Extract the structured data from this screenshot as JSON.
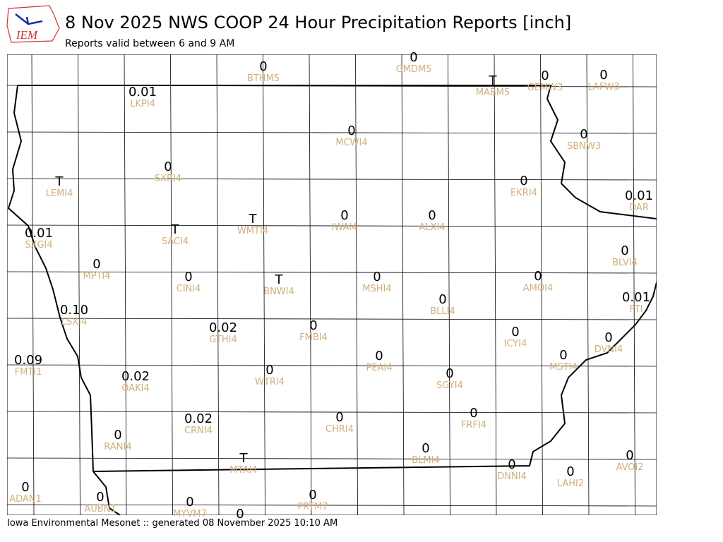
{
  "header": {
    "logo": "IEM",
    "title": "8 Nov 2025 NWS COOP 24 Hour Precipitation Reports [inch]",
    "subtitle": "Reports valid between 6 and 9 AM"
  },
  "stations": [
    {
      "value": "0",
      "id": "BTHM5"
    },
    {
      "value": "0",
      "id": "GMDM5"
    },
    {
      "value": "T",
      "id": "MABM5"
    },
    {
      "value": "0",
      "id": "GEMW3"
    },
    {
      "value": "0",
      "id": "LAFW3"
    },
    {
      "value": "0.01",
      "id": "LKPI4"
    },
    {
      "value": "0",
      "id": "MCWI4"
    },
    {
      "value": "0",
      "id": "SBNW3"
    },
    {
      "value": "T",
      "id": "LEMI4"
    },
    {
      "value": "0",
      "id": "SXRI4"
    },
    {
      "value": "0",
      "id": "EKRI4"
    },
    {
      "value": "0.01",
      "id": "DAR"
    },
    {
      "value": "0.01",
      "id": "SXGI4"
    },
    {
      "value": "T",
      "id": "SACI4"
    },
    {
      "value": "T",
      "id": "WMTI4"
    },
    {
      "value": "0",
      "id": "IWAI4"
    },
    {
      "value": "0",
      "id": "ALXI4"
    },
    {
      "value": "0",
      "id": "MPTI4"
    },
    {
      "value": "0",
      "id": "CINI4"
    },
    {
      "value": "T",
      "id": "BNWI4"
    },
    {
      "value": "0",
      "id": "MSHI4"
    },
    {
      "value": "0",
      "id": "AMOI4"
    },
    {
      "value": "0",
      "id": "BLVI4"
    },
    {
      "value": "0",
      "id": "BLLI4"
    },
    {
      "value": "0.01",
      "id": "FTI"
    },
    {
      "value": "0.10",
      "id": "LSXI4"
    },
    {
      "value": "0.02",
      "id": "GTHI4"
    },
    {
      "value": "0",
      "id": "FMBI4"
    },
    {
      "value": "0",
      "id": "ICYI4"
    },
    {
      "value": "0",
      "id": "DVNI4"
    },
    {
      "value": "0.09",
      "id": "FMTI1"
    },
    {
      "value": "0",
      "id": "PEAI4"
    },
    {
      "value": "0",
      "id": "MSTI4"
    },
    {
      "value": "0.02",
      "id": "OAKI4"
    },
    {
      "value": "0",
      "id": "WTRI4"
    },
    {
      "value": "0",
      "id": "SGYI4"
    },
    {
      "value": "0.02",
      "id": "CRNI4"
    },
    {
      "value": "0",
      "id": "CHRI4"
    },
    {
      "value": "0",
      "id": "FRFI4"
    },
    {
      "value": "0",
      "id": "RANI4"
    },
    {
      "value": "T",
      "id": "MTAI4"
    },
    {
      "value": "0",
      "id": "BLMI4"
    },
    {
      "value": "0",
      "id": "AVOI2"
    },
    {
      "value": "0",
      "id": "DNNI4"
    },
    {
      "value": "0",
      "id": "LAHI2"
    },
    {
      "value": "0",
      "id": "ADAN1"
    },
    {
      "value": "0",
      "id": "AUBN1"
    },
    {
      "value": "0",
      "id": "MYVM7"
    },
    {
      "value": "0"
    },
    {
      "value": "0",
      "id": "PRTM7"
    }
  ],
  "footer": "Iowa Environmental Mesonet :: generated 08 November 2025 10:10 AM"
}
